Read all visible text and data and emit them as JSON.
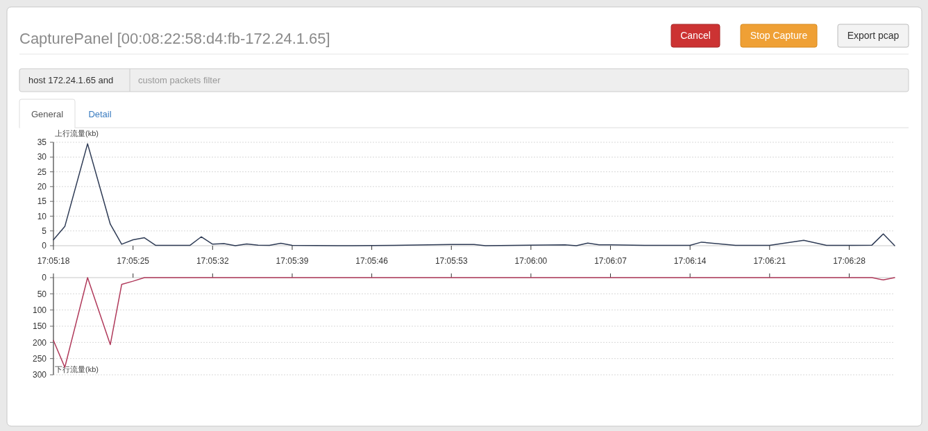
{
  "chart_data": [
    {
      "type": "line",
      "title": "CapturePanel [00:08:22:58:d4:fb-172.24.1.65]",
      "annotations": [
        "Cancel",
        "Stop Capture",
        "Export pcap",
        "host 172.24.1.65 and",
        "custom packets filter",
        "General",
        "Detail"
      ],
      "ylabel": "上行流量(kb)",
      "x": [
        17.088333,
        17.088611,
        17.089167,
        17.089722,
        17.09,
        17.090278,
        17.090556,
        17.090833,
        17.091111,
        17.091389,
        17.091667,
        17.091944,
        17.092222,
        17.0925,
        17.092778,
        17.093056,
        17.093333,
        17.093611,
        17.093889,
        17.094167,
        17.095278,
        17.096667,
        17.098056,
        17.098611,
        17.098889,
        17.100833,
        17.101111,
        17.101389,
        17.101667,
        17.101944,
        17.1025,
        17.102778,
        17.103333,
        17.103889,
        17.104167,
        17.105,
        17.105833,
        17.106667,
        17.107222,
        17.107778,
        17.108333,
        17.108611,
        17.108889
      ],
      "series": [
        {
          "color": "#2e3b55",
          "values": [
            2.0,
            6.5,
            34.5,
            7.3,
            0.5,
            2.0,
            2.7,
            0.1,
            0.1,
            0.1,
            0.1,
            3.0,
            0.5,
            0.7,
            0,
            0.6,
            0.2,
            0.1,
            0.8,
            0.1,
            0,
            0.1,
            0.4,
            0.4,
            0,
            0.3,
            0,
            0.9,
            0.3,
            0.3,
            0.2,
            0.1,
            0.1,
            0.1,
            1.2,
            0.1,
            0.1,
            1.8,
            0.1,
            0.1,
            0.2,
            4.0,
            0
          ]
        }
      ],
      "xlim": [
        17.088333,
        17.108889
      ],
      "xticks": [
        {
          "value": 17.088333,
          "label": "17:05:18"
        },
        {
          "value": 17.090278,
          "label": "17:05:25"
        },
        {
          "value": 17.092222,
          "label": "17:05:32"
        },
        {
          "value": 17.094167,
          "label": "17:05:39"
        },
        {
          "value": 17.096111,
          "label": "17:05:46"
        },
        {
          "value": 17.098056,
          "label": "17:05:53"
        },
        {
          "value": 17.1,
          "label": "17:06:00"
        },
        {
          "value": 17.101944,
          "label": "17:06:07"
        },
        {
          "value": 17.103889,
          "label": "17:06:14"
        },
        {
          "value": 17.105833,
          "label": "17:06:21"
        },
        {
          "value": 17.107778,
          "label": "17:06:28"
        }
      ],
      "ylim": [
        0,
        35
      ],
      "yticks": [
        0,
        5,
        10,
        15,
        20,
        25,
        30,
        35
      ],
      "grid": "y",
      "marker": "none",
      "line_style": "solid"
    },
    {
      "type": "line",
      "ylabel": "下行流量(kb)",
      "x": [
        17.088333,
        17.088611,
        17.089167,
        17.089722,
        17.09,
        17.090278,
        17.090556,
        17.090833,
        17.091111,
        17.091389,
        17.091667,
        17.091944,
        17.092222,
        17.0925,
        17.092778,
        17.093056,
        17.093333,
        17.093611,
        17.093889,
        17.094167,
        17.095278,
        17.096667,
        17.098056,
        17.098611,
        17.098889,
        17.100833,
        17.101111,
        17.101389,
        17.101667,
        17.101944,
        17.1025,
        17.102778,
        17.103333,
        17.103889,
        17.104167,
        17.105,
        17.105833,
        17.106667,
        17.107222,
        17.107778,
        17.108333,
        17.108611,
        17.108889
      ],
      "series": [
        {
          "color": "#b03a5b",
          "values": [
            194,
            277,
            0,
            207,
            21,
            11,
            0,
            0,
            0,
            0,
            0,
            0,
            0,
            0,
            0,
            0,
            0,
            0,
            0,
            0,
            0,
            0,
            0,
            0,
            0,
            0,
            0,
            0,
            0,
            0,
            0,
            0,
            0,
            0,
            0,
            0,
            0,
            0,
            0,
            0,
            0,
            7,
            0
          ]
        }
      ],
      "xlim": [
        17.088333,
        17.108889
      ],
      "xticks": [
        {
          "value": 17.088333,
          "label": null
        },
        {
          "value": 17.090278,
          "label": null
        },
        {
          "value": 17.092222,
          "label": null
        },
        {
          "value": 17.094167,
          "label": null
        },
        {
          "value": 17.096111,
          "label": null
        },
        {
          "value": 17.098056,
          "label": null
        },
        {
          "value": 17.1,
          "label": null
        },
        {
          "value": 17.101944,
          "label": null
        },
        {
          "value": 17.103889,
          "label": null
        },
        {
          "value": 17.105833,
          "label": null
        },
        {
          "value": 17.107778,
          "label": null
        }
      ],
      "ylim": [
        300,
        0
      ],
      "yticks": [
        0,
        50,
        100,
        150,
        200,
        250,
        300
      ],
      "tick_labels": "y",
      "grid": "y",
      "marker": "none",
      "line_style": "solid"
    }
  ]
}
